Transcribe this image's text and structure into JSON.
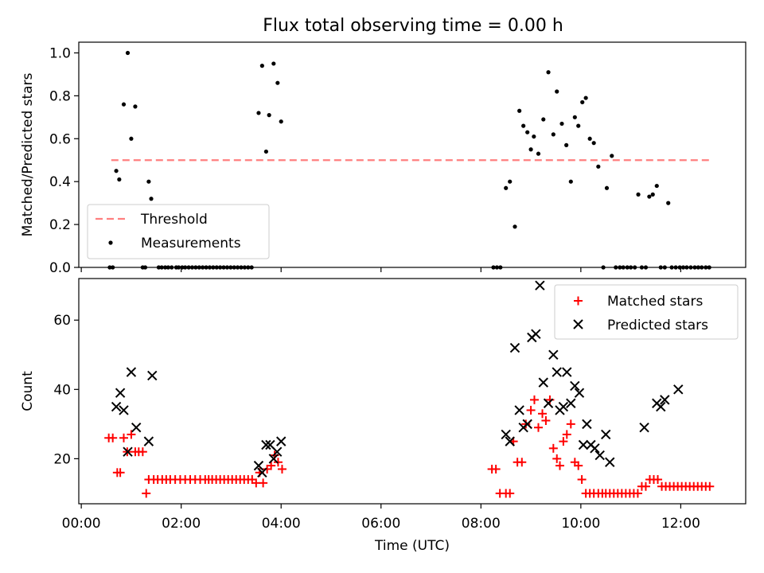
{
  "chart_data": [
    {
      "type": "scatter",
      "title": "Flux total observing time = 0.00 h",
      "ylabel": "Matched/Predicted stars",
      "xlabel": "",
      "ylim": [
        0,
        1.05
      ],
      "xlim": [
        -0.05,
        13.3
      ],
      "yticks": [
        0.0,
        0.2,
        0.4,
        0.6,
        0.8,
        1.0
      ],
      "ytick_labels": [
        "0.0",
        "0.2",
        "0.4",
        "0.6",
        "0.8",
        "1.0"
      ],
      "xticks": [
        0,
        2,
        4,
        6,
        8,
        10,
        12
      ],
      "xtick_labels_visible": false,
      "legend": {
        "placement": "lower-left",
        "entries": [
          "Threshold",
          "Measurements"
        ]
      },
      "threshold": {
        "name": "Threshold",
        "value": 0.5,
        "x_start": 0.6,
        "x_end": 12.6,
        "color": "#ff7f7f",
        "style": "dashed"
      },
      "series": [
        {
          "name": "Measurements",
          "marker": "dot",
          "color": "#000000",
          "x": [
            0.57,
            0.63,
            0.7,
            0.76,
            0.85,
            0.93,
            1.0,
            1.08,
            1.23,
            1.28,
            1.35,
            1.4,
            1.55,
            1.61,
            1.68,
            1.74,
            1.81,
            1.9,
            1.95,
            2.02,
            2.08,
            2.15,
            2.22,
            2.29,
            2.36,
            2.43,
            2.5,
            2.57,
            2.64,
            2.71,
            2.78,
            2.85,
            2.92,
            2.99,
            3.06,
            3.13,
            3.2,
            3.27,
            3.34,
            3.41,
            3.55,
            3.62,
            3.7,
            3.76,
            3.85,
            3.93,
            4.0,
            8.25,
            8.32,
            8.39,
            8.5,
            8.58,
            8.68,
            8.77,
            8.85,
            8.93,
            9.0,
            9.06,
            9.15,
            9.25,
            9.35,
            9.45,
            9.52,
            9.62,
            9.71,
            9.8,
            9.88,
            9.95,
            10.03,
            10.1,
            10.18,
            10.26,
            10.35,
            10.45,
            10.52,
            10.62,
            10.7,
            10.78,
            10.85,
            10.93,
            11.0,
            11.08,
            11.15,
            11.22,
            11.3,
            11.37,
            11.44,
            11.52,
            11.6,
            11.68,
            11.75,
            11.82,
            11.9,
            11.98,
            12.05,
            12.12,
            12.2,
            12.28,
            12.35,
            12.42,
            12.5,
            12.57
          ],
          "y": [
            0,
            0,
            0.45,
            0.41,
            0.76,
            1.0,
            0.6,
            0.75,
            0,
            0,
            0.4,
            0.32,
            0,
            0,
            0,
            0,
            0,
            0,
            0,
            0,
            0,
            0,
            0,
            0,
            0,
            0,
            0,
            0,
            0,
            0,
            0,
            0,
            0,
            0,
            0,
            0,
            0,
            0,
            0,
            0,
            0.72,
            0.94,
            0.54,
            0.71,
            0.95,
            0.86,
            0.68,
            0,
            0,
            0,
            0.37,
            0.4,
            0.19,
            0.73,
            0.66,
            0.63,
            0.55,
            0.61,
            0.53,
            0.69,
            0.91,
            0.62,
            0.82,
            0.67,
            0.57,
            0.4,
            0.7,
            0.66,
            0.77,
            0.79,
            0.6,
            0.58,
            0.47,
            0,
            0.37,
            0.52,
            0,
            0,
            0,
            0,
            0,
            0,
            0.34,
            0,
            0,
            0.33,
            0.34,
            0.38,
            0,
            0,
            0.3,
            0,
            0,
            0,
            0,
            0,
            0,
            0,
            0,
            0,
            0,
            0
          ]
        }
      ]
    },
    {
      "type": "scatter",
      "title": "",
      "ylabel": "Count",
      "xlabel": "Time (UTC)",
      "ylim": [
        7,
        72
      ],
      "xlim": [
        -0.05,
        13.3
      ],
      "yticks": [
        20,
        40,
        60
      ],
      "ytick_labels": [
        "20",
        "40",
        "60"
      ],
      "xticks": [
        0,
        2,
        4,
        6,
        8,
        10,
        12
      ],
      "xtick_labels": [
        "00:00",
        "02:00",
        "04:00",
        "06:00",
        "08:00",
        "10:00",
        "12:00"
      ],
      "legend": {
        "placement": "upper-right",
        "entries": [
          "Matched stars",
          "Predicted stars"
        ]
      },
      "series": [
        {
          "name": "Matched stars",
          "marker": "plus",
          "color": "#ff0000",
          "x": [
            0.55,
            0.63,
            0.72,
            0.78,
            0.85,
            0.92,
            1.0,
            1.08,
            1.15,
            1.23,
            1.3,
            1.35,
            1.45,
            1.53,
            1.62,
            1.7,
            1.78,
            1.88,
            1.98,
            2.08,
            2.18,
            2.28,
            2.38,
            2.48,
            2.55,
            2.62,
            2.7,
            2.78,
            2.86,
            2.94,
            3.02,
            3.1,
            3.18,
            3.26,
            3.34,
            3.42,
            3.5,
            3.57,
            3.64,
            3.72,
            3.8,
            3.87,
            3.94,
            4.02,
            8.22,
            8.3,
            8.38,
            8.5,
            8.58,
            8.65,
            8.73,
            8.82,
            8.9,
            9.0,
            9.07,
            9.15,
            9.23,
            9.3,
            9.38,
            9.45,
            9.52,
            9.58,
            9.65,
            9.72,
            9.8,
            9.88,
            9.95,
            10.02,
            10.1,
            10.18,
            10.26,
            10.35,
            10.43,
            10.5,
            10.58,
            10.66,
            10.74,
            10.82,
            10.9,
            10.98,
            11.06,
            11.14,
            11.22,
            11.3,
            11.38,
            11.46,
            11.54,
            11.62,
            11.7,
            11.78,
            11.86,
            11.94,
            12.02,
            12.1,
            12.18,
            12.26,
            12.34,
            12.42,
            12.5,
            12.58
          ],
          "y": [
            26,
            26,
            16,
            16,
            26,
            22,
            27,
            22,
            22,
            22,
            10,
            14,
            14,
            14,
            14,
            14,
            14,
            14,
            14,
            14,
            14,
            14,
            14,
            14,
            14,
            14,
            14,
            14,
            14,
            14,
            14,
            14,
            14,
            14,
            14,
            14,
            13,
            16,
            13,
            17,
            18,
            21,
            19,
            17,
            17,
            17,
            10,
            10,
            10,
            25,
            19,
            19,
            30,
            34,
            37,
            29,
            33,
            31,
            37,
            23,
            20,
            18,
            25,
            27,
            30,
            19,
            18,
            14,
            10,
            10,
            10,
            10,
            10,
            10,
            10,
            10,
            10,
            10,
            10,
            10,
            10,
            10,
            12,
            12,
            14,
            14,
            14,
            12,
            12,
            12,
            12,
            12,
            12,
            12,
            12,
            12,
            12,
            12,
            12,
            12
          ]
        },
        {
          "name": "Predicted stars",
          "marker": "x",
          "color": "#000000",
          "x": [
            0.7,
            0.78,
            0.85,
            0.93,
            1.0,
            1.1,
            1.35,
            1.42,
            3.55,
            3.62,
            3.7,
            3.78,
            3.85,
            3.92,
            4.0,
            8.5,
            8.58,
            8.68,
            8.77,
            8.85,
            8.93,
            9.02,
            9.1,
            9.18,
            9.25,
            9.35,
            9.45,
            9.52,
            9.58,
            9.65,
            9.72,
            9.8,
            9.88,
            9.97,
            10.05,
            10.12,
            10.2,
            10.28,
            10.38,
            10.5,
            10.58,
            11.27,
            11.52,
            11.6,
            11.68,
            11.95
          ],
          "y": [
            35,
            39,
            34,
            22,
            45,
            29,
            25,
            44,
            18,
            16,
            24,
            24,
            20,
            22,
            25,
            27,
            25,
            52,
            34,
            29,
            30,
            55,
            56,
            70,
            42,
            36,
            50,
            45,
            34,
            35,
            45,
            36,
            41,
            39,
            24,
            30,
            24,
            23,
            21,
            27,
            19,
            29,
            36,
            35,
            37,
            40
          ]
        }
      ]
    }
  ]
}
